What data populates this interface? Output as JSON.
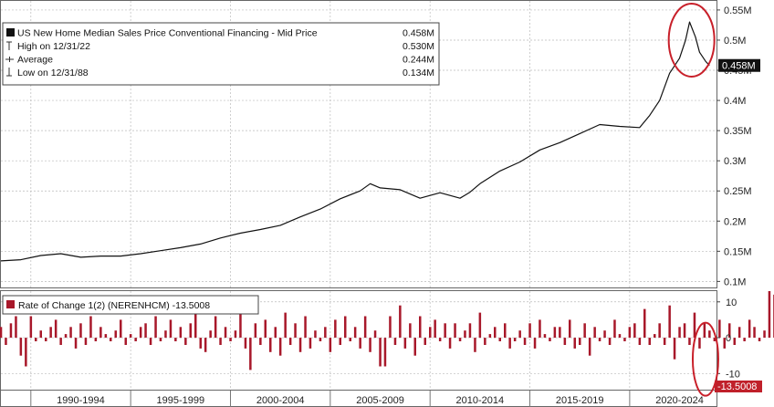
{
  "chart_data": [
    {
      "type": "line",
      "legend": {
        "title": "US New Home Median Sales Price Conventional Financing - Mid Price",
        "title_value": "0.458M",
        "rows": [
          {
            "label": "High on 12/31/22",
            "value": "0.530M"
          },
          {
            "label": "Average",
            "value": "0.244M"
          },
          {
            "label": "Low on 12/31/88",
            "value": "0.134M"
          }
        ]
      },
      "y_ticks": [
        "0.1M",
        "0.15M",
        "0.2M",
        "0.25M",
        "0.3M",
        "0.35M",
        "0.4M",
        "0.45M",
        "0.5M",
        "0.55M"
      ],
      "y_tick_values": [
        0.1,
        0.15,
        0.2,
        0.25,
        0.3,
        0.35,
        0.4,
        0.45,
        0.5,
        0.55
      ],
      "ylim": [
        0.09,
        0.565
      ],
      "last_value_label": "0.458M",
      "series": [
        {
          "x": [
            1988.0,
            1989.0,
            1990.0,
            1991.0,
            1992.0,
            1993.0,
            1994.0,
            1995.0,
            1996.0,
            1997.0,
            1998.0,
            1999.0,
            2000.0,
            2001.0,
            2002.0,
            2003.0,
            2004.0,
            2005.0,
            2006.0,
            2006.5,
            2007.0,
            2008.0,
            2009.0,
            2010.0,
            2011.0,
            2011.5,
            2012.0,
            2013.0,
            2014.0,
            2015.0,
            2016.0,
            2017.0,
            2018.0,
            2019.0,
            2020.0,
            2020.5,
            2021.0,
            2021.5,
            2022.0,
            2022.3,
            2022.5,
            2022.8,
            2023.0,
            2023.3,
            2023.5
          ],
          "values": [
            0.134,
            0.136,
            0.143,
            0.146,
            0.14,
            0.142,
            0.142,
            0.146,
            0.151,
            0.156,
            0.162,
            0.172,
            0.18,
            0.186,
            0.193,
            0.207,
            0.22,
            0.237,
            0.25,
            0.262,
            0.255,
            0.252,
            0.238,
            0.247,
            0.238,
            0.248,
            0.262,
            0.283,
            0.298,
            0.318,
            0.33,
            0.345,
            0.36,
            0.357,
            0.355,
            0.375,
            0.4,
            0.445,
            0.47,
            0.5,
            0.53,
            0.505,
            0.48,
            0.465,
            0.458
          ]
        }
      ],
      "annotation": "red circle around peak"
    },
    {
      "type": "bar",
      "legend_label": "Rate of Change 1(2) (NERENHCM) -13.5008",
      "y_ticks": [
        "10",
        "0",
        "-10"
      ],
      "y_tick_values": [
        10,
        0,
        -10
      ],
      "ylim": [
        -14.5,
        13
      ],
      "last_value_label": "-13.5008",
      "x_start": 1988.0,
      "x_step": 0.25,
      "values": [
        3,
        -2,
        4,
        6,
        -5,
        -8,
        6,
        -1,
        2,
        -1,
        3,
        5,
        -2,
        1,
        3,
        -3,
        4,
        -2,
        6,
        -1,
        3,
        1,
        -1,
        2,
        5,
        -2,
        1,
        -1,
        3,
        4,
        -2,
        6,
        -1,
        2,
        5,
        -1,
        3,
        -2,
        4,
        7,
        -3,
        -4,
        2,
        6,
        -2,
        3,
        -1,
        2,
        9,
        -3,
        -9,
        4,
        -2,
        5,
        -4,
        3,
        -5,
        7,
        -2,
        4,
        -4,
        6,
        -3,
        2,
        -1,
        3,
        -4,
        5,
        -2,
        6,
        -1,
        3,
        -3,
        6,
        -4,
        2,
        -8,
        -8,
        6,
        -2,
        9,
        -3,
        4,
        -5,
        6,
        -2,
        3,
        5,
        -1,
        4,
        -3,
        4,
        -1,
        2,
        4,
        -4,
        7,
        -2,
        1,
        3,
        -1,
        4,
        -3,
        -1,
        2,
        -2,
        4,
        -3,
        5,
        1,
        -1,
        3,
        3,
        -2,
        5,
        -3,
        -2,
        4,
        -5,
        3,
        -1,
        2,
        -2,
        5,
        1,
        -1,
        3,
        4,
        -2,
        8,
        -2,
        1,
        4,
        -2,
        9,
        -6,
        3,
        4,
        -2,
        7,
        -3,
        4,
        2,
        -1,
        5,
        -3,
        4,
        -2,
        3,
        -1,
        5,
        3,
        -1,
        2,
        13,
        12,
        -1,
        14,
        10,
        -2,
        6,
        -1,
        12,
        8,
        -4,
        5,
        -2,
        -13.5
      ]
    }
  ],
  "x_axis": {
    "labels": [
      "1990-1994",
      "1995-1999",
      "2000-2004",
      "2005-2009",
      "2010-2014",
      "2015-2019",
      "2020-2024"
    ],
    "label_centers": [
      1992.0,
      1997.0,
      2002.0,
      2007.0,
      2012.0,
      2017.0,
      2022.0
    ],
    "dividers": [
      1989.5,
      1994.5,
      1999.5,
      2004.5,
      2009.5,
      2014.5,
      2019.5
    ],
    "range": [
      1988.0,
      2023.85
    ]
  },
  "colors": {
    "line": "#111111",
    "bars": "#a8182a",
    "highlight": "#c8202a",
    "grid": "#bbbbbb",
    "axis_bg": "#ffffff",
    "last_value_bg": "#111111",
    "last_value_text": "#ffffff",
    "roc_last_bg": "#c0202a"
  }
}
